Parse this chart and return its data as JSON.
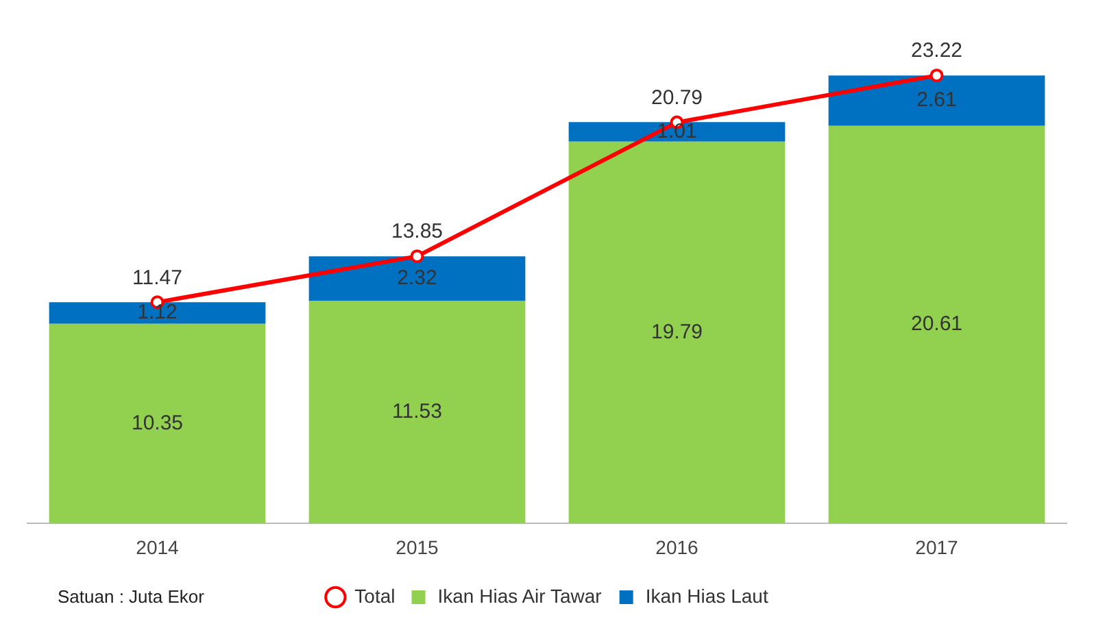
{
  "chart_data": {
    "type": "bar",
    "stacked": true,
    "categories": [
      "2014",
      "2015",
      "2016",
      "2017"
    ],
    "series": [
      {
        "name": "Ikan Hias Air Tawar",
        "color": "#92d050",
        "values": [
          10.35,
          11.53,
          19.79,
          20.61
        ]
      },
      {
        "name": "Ikan Hias Laut",
        "color": "#0070c0",
        "values": [
          1.12,
          2.32,
          1.01,
          2.61
        ]
      },
      {
        "name": "Total",
        "type": "line",
        "color": "#ff0000",
        "marker": "circle",
        "line_style": "solid",
        "values": [
          11.47,
          13.85,
          20.79,
          23.22
        ]
      }
    ],
    "data_labels": true,
    "grid": false,
    "legend": "bottom",
    "tick_labels": "x",
    "annotations": [
      "Satuan : Juta Ekor"
    ]
  }
}
